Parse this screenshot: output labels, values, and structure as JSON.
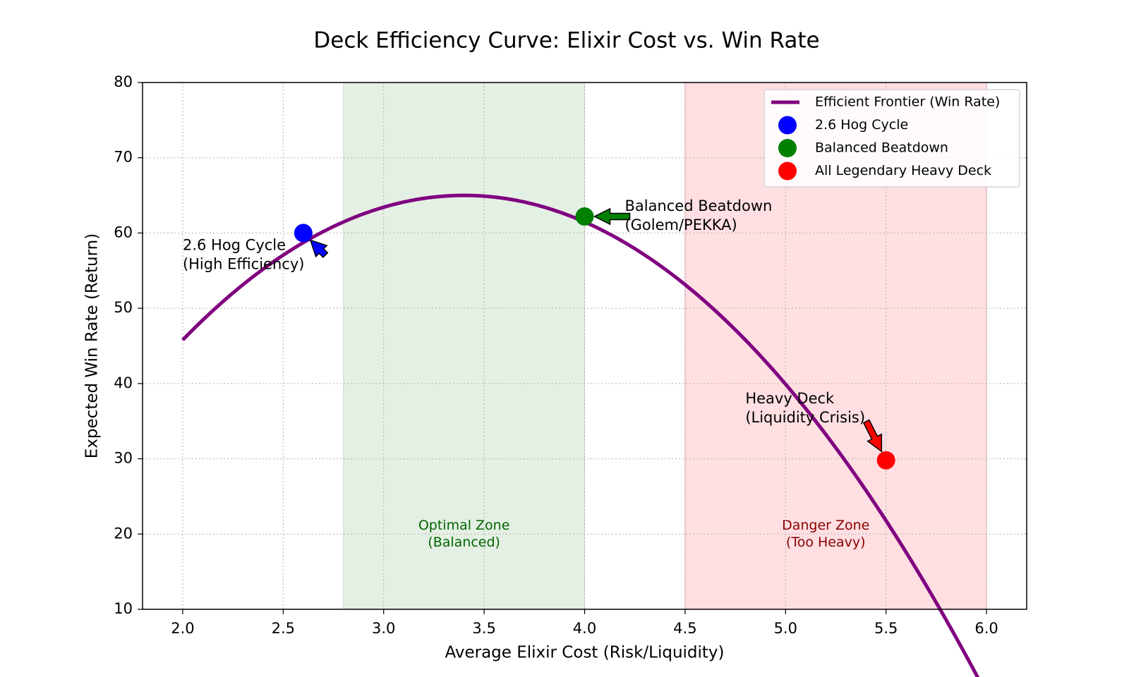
{
  "chart_data": {
    "type": "line",
    "title": "Deck Efficiency Curve: Elixir Cost vs. Win Rate",
    "xlabel": "Average Elixir Cost (Risk/Liquidity)",
    "ylabel": "Expected Win Rate (Return)",
    "xlim": [
      1.8,
      6.2
    ],
    "ylim": [
      10,
      80
    ],
    "xticks": [
      "2.0",
      "2.5",
      "3.0",
      "3.5",
      "4.0",
      "4.5",
      "5.0",
      "5.5",
      "6.0"
    ],
    "yticks": [
      "10",
      "20",
      "30",
      "40",
      "50",
      "60",
      "70",
      "80"
    ],
    "grid": true,
    "legend_position": "top-right",
    "curve": {
      "name": "Efficient Frontier (Win Rate)",
      "color": "#800080",
      "formula": "65 - 9.8*(x - 3.4)^2",
      "x_range": [
        2.0,
        6.0
      ]
    },
    "points": [
      {
        "name": "2.6 Hog Cycle",
        "x": 2.6,
        "y": 60,
        "color": "#0000ff"
      },
      {
        "name": "Balanced Beatdown",
        "x": 4.0,
        "y": 62.2,
        "color": "#008000"
      },
      {
        "name": "All Legendary Heavy Deck",
        "x": 5.5,
        "y": 29.8,
        "color": "#ff0000"
      }
    ],
    "annotations": [
      {
        "lines": [
          "2.6 Hog Cycle",
          "(High Efficiency)"
        ],
        "text_x": 2.0,
        "text_y": 57,
        "target_x": 2.6,
        "target_y": 60,
        "arrow_color": "#0000ff"
      },
      {
        "lines": [
          "Balanced Beatdown",
          "(Golem/PEKKA)"
        ],
        "text_x": 4.2,
        "text_y": 62.2,
        "target_x": 4.0,
        "target_y": 62.2,
        "arrow_color": "#008000"
      },
      {
        "lines": [
          "Heavy Deck",
          "(Liquidity Crisis)"
        ],
        "text_x": 4.8,
        "text_y": 37,
        "target_x": 5.5,
        "target_y": 29.8,
        "arrow_color": "#ff0000"
      }
    ],
    "zones": [
      {
        "label_lines": [
          "Optimal Zone",
          "(Balanced)"
        ],
        "x0": 2.8,
        "x1": 4.0,
        "fill": "#e4f0e4",
        "edge": "#c9e0c9",
        "text_color": "#006400",
        "label_x": 3.4,
        "label_y": 20
      },
      {
        "label_lines": [
          "Danger Zone",
          "(Too Heavy)"
        ],
        "x0": 4.5,
        "x1": 6.0,
        "fill": "#ffdfe2",
        "edge": "#f0b8be",
        "text_color": "#8b0000",
        "label_x": 5.2,
        "label_y": 20
      }
    ]
  }
}
